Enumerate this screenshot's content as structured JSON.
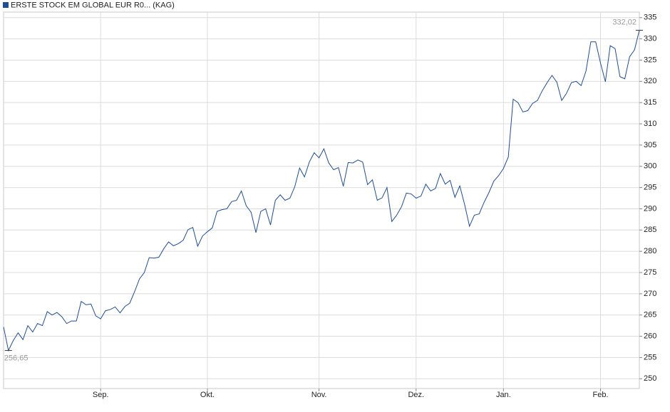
{
  "chart_data": {
    "type": "line",
    "title": "ERSTE STOCK EM GLOBAL EUR R0... (KAG)",
    "categories": [
      null,
      null,
      null,
      null,
      null,
      null,
      null,
      null,
      null,
      null,
      null,
      null,
      null,
      null,
      null,
      null,
      null,
      null,
      null,
      null,
      "Sep.",
      null,
      null,
      null,
      null,
      null,
      null,
      null,
      null,
      null,
      null,
      null,
      null,
      null,
      null,
      null,
      null,
      null,
      null,
      null,
      null,
      null,
      "Okt.",
      null,
      null,
      null,
      null,
      null,
      null,
      null,
      null,
      null,
      null,
      null,
      null,
      null,
      null,
      null,
      null,
      null,
      null,
      null,
      null,
      null,
      null,
      "Nov.",
      null,
      null,
      null,
      null,
      null,
      null,
      null,
      null,
      null,
      null,
      null,
      null,
      null,
      null,
      null,
      null,
      null,
      null,
      null,
      "Dez.",
      null,
      null,
      null,
      null,
      null,
      null,
      null,
      null,
      null,
      null,
      null,
      null,
      null,
      null,
      null,
      null,
      null,
      "Jan.",
      null,
      null,
      null,
      null,
      null,
      null,
      null,
      null,
      null,
      null,
      null,
      null,
      null,
      null,
      null,
      null,
      null,
      null,
      null,
      "Feb.",
      null,
      null,
      null,
      null,
      null,
      null,
      null,
      null
    ],
    "series": [
      {
        "name": "ERSTE STOCK EM GLOBAL EUR R0... (KAG)",
        "color": "#1f4e96",
        "values": [
          262.2,
          256.65,
          259,
          260.8,
          259.2,
          262.5,
          261,
          263,
          262.5,
          265.8,
          265,
          265.6,
          264.6,
          263,
          263.6,
          263.6,
          268.2,
          267.4,
          267.6,
          264.8,
          264.1,
          266,
          266.3,
          266.9,
          265.5,
          267,
          267.8,
          270.5,
          273.5,
          275,
          278.5,
          278.4,
          278.6,
          280.6,
          282.2,
          281.3,
          281.8,
          282.6,
          285.1,
          285.6,
          281.2,
          283.6,
          284.6,
          285.5,
          289.4,
          289.8,
          290,
          291.7,
          292,
          294.2,
          290.7,
          289.2,
          284.4,
          289.4,
          290,
          286.2,
          292,
          293.3,
          292,
          292.5,
          295.2,
          299.6,
          297.5,
          301,
          303.2,
          302,
          304.1,
          300.8,
          299.2,
          299.7,
          295.3,
          300.9,
          300.8,
          301.5,
          301,
          295.7,
          296.8,
          292,
          292.6,
          295,
          287,
          288.5,
          290.5,
          293.7,
          293.5,
          292.5,
          293,
          295.8,
          294.2,
          294.8,
          298.3,
          295.8,
          296.7,
          292.7,
          295.4,
          291,
          285.9,
          288.5,
          288.8,
          291.5,
          293.8,
          296.5,
          297.8,
          299.5,
          302.2,
          315.8,
          315,
          312.8,
          313.1,
          314.8,
          315.5,
          317.8,
          319.7,
          321.4,
          319.8,
          315.5,
          317.2,
          319.7,
          320,
          319,
          322.4,
          329.3,
          329.3,
          324.3,
          319.9,
          328.4,
          327.7,
          321.1,
          320.6,
          325.8,
          327.4,
          332.02
        ]
      }
    ],
    "annotations": [
      "256,65",
      "332,02"
    ],
    "ylim": [
      247.7,
      336.3
    ],
    "yticks": [
      250,
      255,
      260,
      265,
      270,
      275,
      280,
      285,
      290,
      295,
      300,
      305,
      310,
      315,
      320,
      325,
      330,
      335
    ],
    "grid": true
  }
}
